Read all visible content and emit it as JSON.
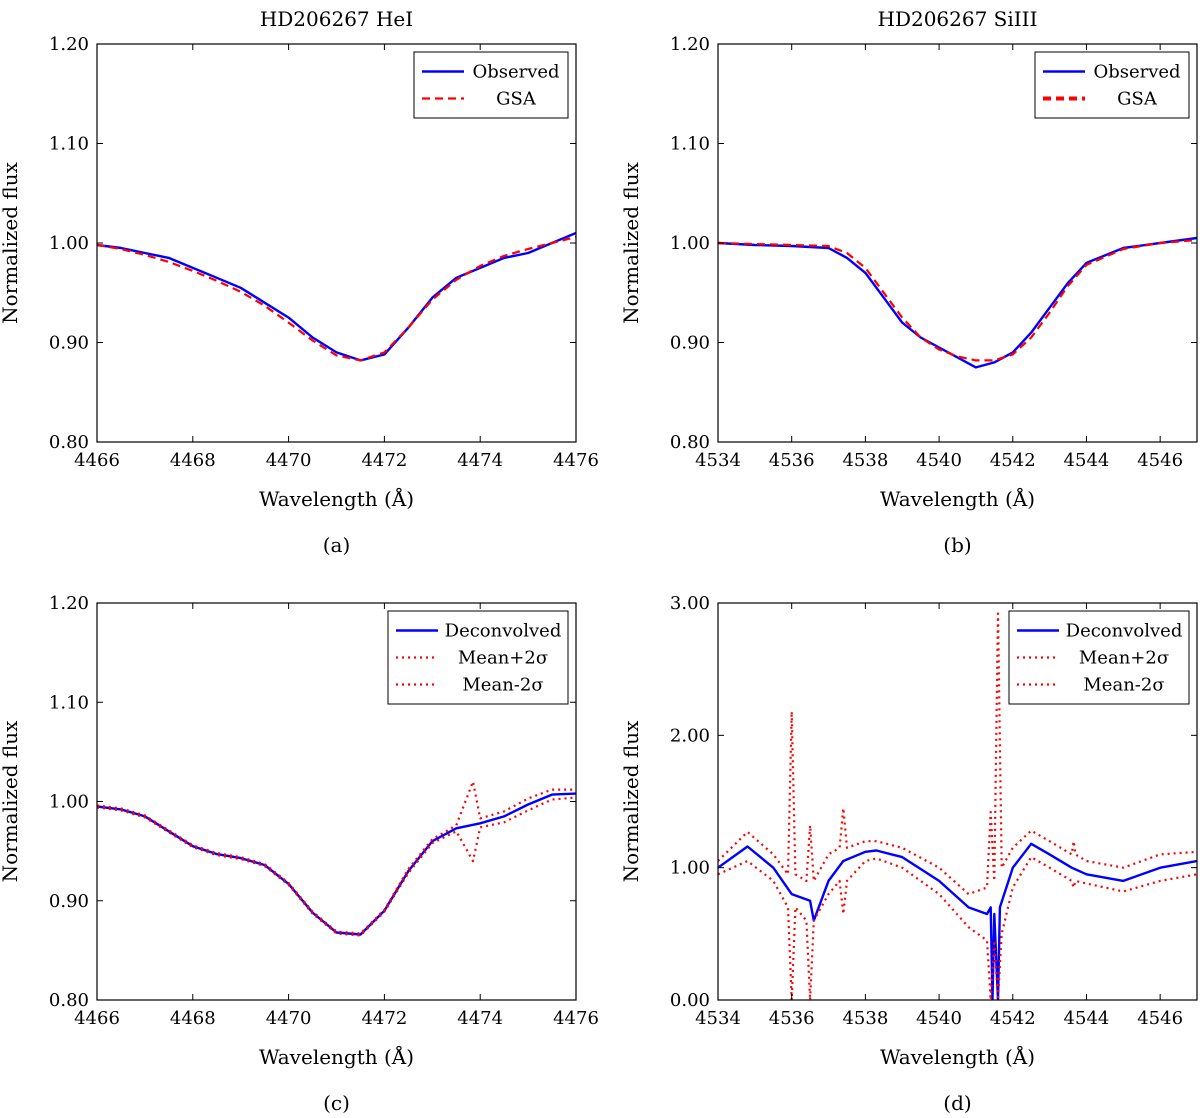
{
  "chart_data": [
    {
      "type": "line",
      "panel": "(a)",
      "title": "HD206267 HeI",
      "xlabel": "Wavelength (Å)",
      "ylabel": "Normalized flux",
      "xlim": [
        4466,
        4476
      ],
      "ylim": [
        0.8,
        1.2
      ],
      "xticks": [
        "4466",
        "4468",
        "4470",
        "4472",
        "4474",
        "4476"
      ],
      "yticks": [
        "0.80",
        "0.90",
        "1.00",
        "1.10",
        "1.20"
      ],
      "legend_position": "top-right",
      "series": [
        {
          "name": "Observed",
          "color": "#0000ff",
          "style": "solid",
          "x": [
            4466.0,
            4466.5,
            4467.0,
            4467.5,
            4468.0,
            4468.5,
            4469.0,
            4469.5,
            4470.0,
            4470.5,
            4471.0,
            4471.5,
            4472.0,
            4472.5,
            4473.0,
            4473.5,
            4474.0,
            4474.5,
            4475.0,
            4475.5,
            4476.0
          ],
          "y": [
            0.998,
            0.995,
            0.99,
            0.985,
            0.975,
            0.965,
            0.955,
            0.94,
            0.925,
            0.905,
            0.89,
            0.882,
            0.888,
            0.915,
            0.945,
            0.965,
            0.975,
            0.985,
            0.99,
            1.0,
            1.01
          ]
        },
        {
          "name": "GSA",
          "color": "#ff0000",
          "style": "dashed",
          "x": [
            4466.0,
            4466.5,
            4467.0,
            4467.5,
            4468.0,
            4468.5,
            4469.0,
            4469.5,
            4470.0,
            4470.5,
            4471.0,
            4471.5,
            4472.0,
            4472.5,
            4473.0,
            4473.5,
            4474.0,
            4474.5,
            4475.0,
            4475.5,
            4476.0
          ],
          "y": [
            0.998,
            0.994,
            0.988,
            0.981,
            0.972,
            0.962,
            0.951,
            0.937,
            0.92,
            0.902,
            0.887,
            0.882,
            0.89,
            0.915,
            0.943,
            0.963,
            0.977,
            0.987,
            0.994,
            1.0,
            1.006
          ]
        }
      ]
    },
    {
      "type": "line",
      "panel": "(b)",
      "title": "HD206267 SiIII",
      "xlabel": "Wavelength (Å)",
      "ylabel": "Normalized flux",
      "xlim": [
        4534,
        4547
      ],
      "ylim": [
        0.8,
        1.2
      ],
      "xticks": [
        "4534",
        "4536",
        "4538",
        "4540",
        "4542",
        "4544",
        "4546"
      ],
      "yticks": [
        "0.80",
        "0.90",
        "1.00",
        "1.10",
        "1.20"
      ],
      "legend_position": "top-right",
      "series": [
        {
          "name": "Observed",
          "color": "#0000ff",
          "style": "solid",
          "x": [
            4534.0,
            4535.0,
            4536.0,
            4537.0,
            4537.5,
            4538.0,
            4538.5,
            4539.0,
            4539.5,
            4540.0,
            4540.5,
            4541.0,
            4541.5,
            4542.0,
            4542.5,
            4543.0,
            4543.5,
            4544.0,
            4545.0,
            4546.0,
            4547.0
          ],
          "y": [
            1.0,
            0.998,
            0.997,
            0.995,
            0.985,
            0.97,
            0.945,
            0.92,
            0.905,
            0.895,
            0.885,
            0.875,
            0.88,
            0.89,
            0.91,
            0.935,
            0.96,
            0.98,
            0.995,
            1.0,
            1.005
          ]
        },
        {
          "name": "GSA",
          "color": "#ff0000",
          "style": "dashed",
          "x": [
            4534.0,
            4535.0,
            4536.0,
            4537.0,
            4537.5,
            4538.0,
            4538.5,
            4539.0,
            4539.5,
            4540.0,
            4540.5,
            4541.0,
            4541.5,
            4542.0,
            4542.5,
            4543.0,
            4543.5,
            4544.0,
            4545.0,
            4546.0,
            4547.0
          ],
          "y": [
            1.0,
            0.999,
            0.998,
            0.997,
            0.99,
            0.975,
            0.95,
            0.925,
            0.905,
            0.893,
            0.886,
            0.882,
            0.882,
            0.888,
            0.905,
            0.93,
            0.957,
            0.978,
            0.994,
            1.0,
            1.003
          ]
        }
      ]
    },
    {
      "type": "line",
      "panel": "(c)",
      "xlabel": "Wavelength (Å)",
      "ylabel": "Normalized flux",
      "xlim": [
        4466,
        4476
      ],
      "ylim": [
        0.8,
        1.2
      ],
      "xticks": [
        "4466",
        "4468",
        "4470",
        "4472",
        "4474",
        "4476"
      ],
      "yticks": [
        "0.80",
        "0.90",
        "1.00",
        "1.10",
        "1.20"
      ],
      "legend_position": "top-right",
      "series": [
        {
          "name": "Deconvolved",
          "color": "#0000ff",
          "style": "solid",
          "x": [
            4466.0,
            4466.5,
            4467.0,
            4467.5,
            4468.0,
            4468.5,
            4469.0,
            4469.5,
            4470.0,
            4470.5,
            4471.0,
            4471.5,
            4472.0,
            4472.5,
            4473.0,
            4473.5,
            4474.0,
            4474.5,
            4475.0,
            4475.5,
            4476.0
          ],
          "y": [
            0.995,
            0.992,
            0.985,
            0.97,
            0.955,
            0.947,
            0.943,
            0.936,
            0.917,
            0.888,
            0.868,
            0.866,
            0.89,
            0.93,
            0.96,
            0.973,
            0.978,
            0.985,
            0.997,
            1.007,
            1.008
          ]
        },
        {
          "name": "Mean+2σ",
          "color": "#ff0000",
          "style": "dotted",
          "x": [
            4466.0,
            4466.5,
            4467.0,
            4467.5,
            4468.0,
            4468.5,
            4469.0,
            4469.5,
            4470.0,
            4470.5,
            4471.0,
            4471.5,
            4472.0,
            4472.5,
            4473.0,
            4473.5,
            4473.85,
            4474.0,
            4474.5,
            4475.0,
            4475.5,
            4476.0
          ],
          "y": [
            0.996,
            0.993,
            0.986,
            0.971,
            0.956,
            0.948,
            0.944,
            0.937,
            0.918,
            0.889,
            0.869,
            0.867,
            0.891,
            0.932,
            0.962,
            0.976,
            1.02,
            0.983,
            0.99,
            1.003,
            1.012,
            1.012
          ]
        },
        {
          "name": "Mean-2σ",
          "color": "#ff0000",
          "style": "dotted",
          "x": [
            4466.0,
            4466.5,
            4467.0,
            4467.5,
            4468.0,
            4468.5,
            4469.0,
            4469.5,
            4470.0,
            4470.5,
            4471.0,
            4471.5,
            4472.0,
            4472.5,
            4473.0,
            4473.5,
            4473.85,
            4474.0,
            4474.5,
            4475.0,
            4475.5,
            4476.0
          ],
          "y": [
            0.994,
            0.991,
            0.984,
            0.969,
            0.954,
            0.946,
            0.942,
            0.935,
            0.916,
            0.887,
            0.867,
            0.865,
            0.889,
            0.928,
            0.958,
            0.97,
            0.94,
            0.974,
            0.979,
            0.991,
            1.002,
            1.004
          ]
        }
      ]
    },
    {
      "type": "line",
      "panel": "(d)",
      "xlabel": "Wavelength (Å)",
      "ylabel": "Normalized flux",
      "xlim": [
        4534,
        4547
      ],
      "ylim": [
        0.0,
        3.0
      ],
      "xticks": [
        "4534",
        "4536",
        "4538",
        "4540",
        "4542",
        "4544",
        "4546"
      ],
      "yticks": [
        "0.00",
        "1.00",
        "2.00",
        "3.00"
      ],
      "legend_position": "top-right",
      "series": [
        {
          "name": "Deconvolved",
          "color": "#0000ff",
          "style": "solid",
          "x": [
            4534.0,
            4534.8,
            4535.5,
            4536.0,
            4536.5,
            4536.6,
            4537.0,
            4537.4,
            4538.0,
            4538.3,
            4539.0,
            4540.0,
            4540.8,
            4541.3,
            4541.4,
            4541.45,
            4541.5,
            4541.6,
            4541.65,
            4542.0,
            4542.5,
            4543.0,
            4543.6,
            4544.0,
            4545.0,
            4546.0,
            4547.0
          ],
          "y": [
            1.0,
            1.16,
            1.0,
            0.8,
            0.75,
            0.6,
            0.9,
            1.05,
            1.12,
            1.13,
            1.08,
            0.9,
            0.7,
            0.65,
            0.7,
            0.0,
            0.65,
            0.0,
            0.7,
            1.0,
            1.18,
            1.1,
            1.0,
            0.95,
            0.9,
            1.0,
            1.05
          ]
        },
        {
          "name": "Mean+2σ",
          "color": "#ff0000",
          "style": "dotted",
          "x": [
            4534.0,
            4534.8,
            4535.5,
            4535.9,
            4536.0,
            4536.1,
            4536.4,
            4536.5,
            4536.6,
            4537.0,
            4537.3,
            4537.4,
            4537.5,
            4538.0,
            4538.3,
            4539.0,
            4540.0,
            4540.8,
            4541.3,
            4541.4,
            4541.5,
            4541.6,
            4541.7,
            4542.0,
            4542.5,
            4543.0,
            4543.6,
            4543.65,
            4543.7,
            4544.0,
            4545.0,
            4546.0,
            4547.0
          ],
          "y": [
            1.05,
            1.27,
            1.1,
            0.95,
            2.18,
            0.95,
            0.9,
            1.32,
            0.9,
            1.1,
            1.15,
            1.45,
            1.15,
            1.2,
            1.2,
            1.15,
            1.0,
            0.8,
            0.85,
            1.42,
            0.9,
            2.92,
            1.0,
            1.15,
            1.28,
            1.2,
            1.1,
            1.2,
            1.1,
            1.05,
            1.0,
            1.1,
            1.12
          ]
        },
        {
          "name": "Mean-2σ",
          "color": "#ff0000",
          "style": "dotted",
          "x": [
            4534.0,
            4534.8,
            4535.5,
            4535.9,
            4536.0,
            4536.1,
            4536.4,
            4536.5,
            4536.6,
            4537.0,
            4537.3,
            4537.4,
            4537.5,
            4538.0,
            4538.3,
            4539.0,
            4540.0,
            4540.8,
            4541.3,
            4541.4,
            4541.5,
            4541.6,
            4541.7,
            4542.0,
            4542.5,
            4543.0,
            4543.6,
            4543.65,
            4543.7,
            4544.0,
            4545.0,
            4546.0,
            4547.0
          ],
          "y": [
            0.95,
            1.05,
            0.9,
            0.7,
            0.0,
            0.7,
            0.6,
            0.0,
            0.6,
            0.8,
            0.9,
            0.65,
            0.9,
            1.05,
            1.07,
            1.0,
            0.8,
            0.55,
            0.45,
            0.0,
            0.45,
            0.0,
            0.5,
            0.85,
            1.08,
            1.0,
            0.9,
            0.85,
            0.9,
            0.88,
            0.82,
            0.9,
            0.95
          ]
        }
      ]
    }
  ]
}
